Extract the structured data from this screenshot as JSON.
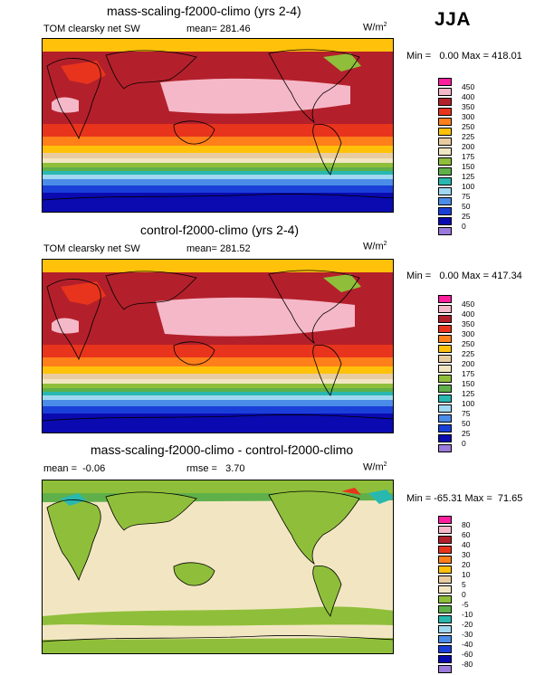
{
  "season": "JJA",
  "panels": [
    {
      "title": "mass-scaling-f2000-climo (yrs 2-4)",
      "left_label": "TOM clearsky net SW",
      "center_label": "mean= 281.46",
      "units": "W/m",
      "units_sup": "2",
      "minmax": "Min =   0.00 Max = 418.01",
      "colorbar": {
        "levels": [
          "450",
          "400",
          "350",
          "300",
          "250",
          "225",
          "200",
          "175",
          "150",
          "125",
          "100",
          "75",
          "50",
          "25",
          "0"
        ],
        "colors": [
          "#ff1f9f",
          "#f5b8c8",
          "#b3202b",
          "#e8341c",
          "#ff7f1a",
          "#ffc10a",
          "#e8cca0",
          "#f2e6c2",
          "#8fbf3a",
          "#5fb04a",
          "#28b8b0",
          "#9fd8f0",
          "#4a8ce8",
          "#1a3fd8",
          "#0a0ab0",
          "#9a7adb"
        ]
      },
      "chart_data": {
        "type": "heatmap",
        "field": "TOM clearsky net SW",
        "mean": 281.46,
        "min": 0.0,
        "max": 418.01,
        "units": "W/m2"
      }
    },
    {
      "title": "control-f2000-climo (yrs 2-4)",
      "left_label": "TOM clearsky net SW",
      "center_label": "mean= 281.52",
      "units": "W/m",
      "units_sup": "2",
      "minmax": "Min =   0.00 Max = 417.34",
      "colorbar": {
        "levels": [
          "450",
          "400",
          "350",
          "300",
          "250",
          "225",
          "200",
          "175",
          "150",
          "125",
          "100",
          "75",
          "50",
          "25",
          "0"
        ],
        "colors": [
          "#ff1f9f",
          "#f5b8c8",
          "#b3202b",
          "#e8341c",
          "#ff7f1a",
          "#ffc10a",
          "#e8cca0",
          "#f2e6c2",
          "#8fbf3a",
          "#5fb04a",
          "#28b8b0",
          "#9fd8f0",
          "#4a8ce8",
          "#1a3fd8",
          "#0a0ab0",
          "#9a7adb"
        ]
      },
      "chart_data": {
        "type": "heatmap",
        "field": "TOM clearsky net SW",
        "mean": 281.52,
        "min": 0.0,
        "max": 417.34,
        "units": "W/m2"
      }
    },
    {
      "title": "mass-scaling-f2000-climo - control-f2000-climo",
      "left_label": "mean =  -0.06",
      "center_label": "rmse =   3.70",
      "units": "W/m",
      "units_sup": "2",
      "minmax": "Min = -65.31 Max =  71.65",
      "colorbar": {
        "levels": [
          "80",
          "60",
          "40",
          "30",
          "20",
          "10",
          "5",
          "0",
          "-5",
          "-10",
          "-20",
          "-30",
          "-40",
          "-60",
          "-80"
        ],
        "colors": [
          "#ff1f9f",
          "#f5b8c8",
          "#b3202b",
          "#e8341c",
          "#ff7f1a",
          "#ffc10a",
          "#e8cca0",
          "#f2e6c2",
          "#8fbf3a",
          "#5fb04a",
          "#28b8b0",
          "#9fd8f0",
          "#4a8ce8",
          "#1a3fd8",
          "#0a0ab0",
          "#9a7adb"
        ]
      },
      "chart_data": {
        "type": "heatmap",
        "field": "difference",
        "mean": -0.06,
        "rmse": 3.7,
        "min": -65.31,
        "max": 71.65,
        "units": "W/m2"
      }
    }
  ]
}
